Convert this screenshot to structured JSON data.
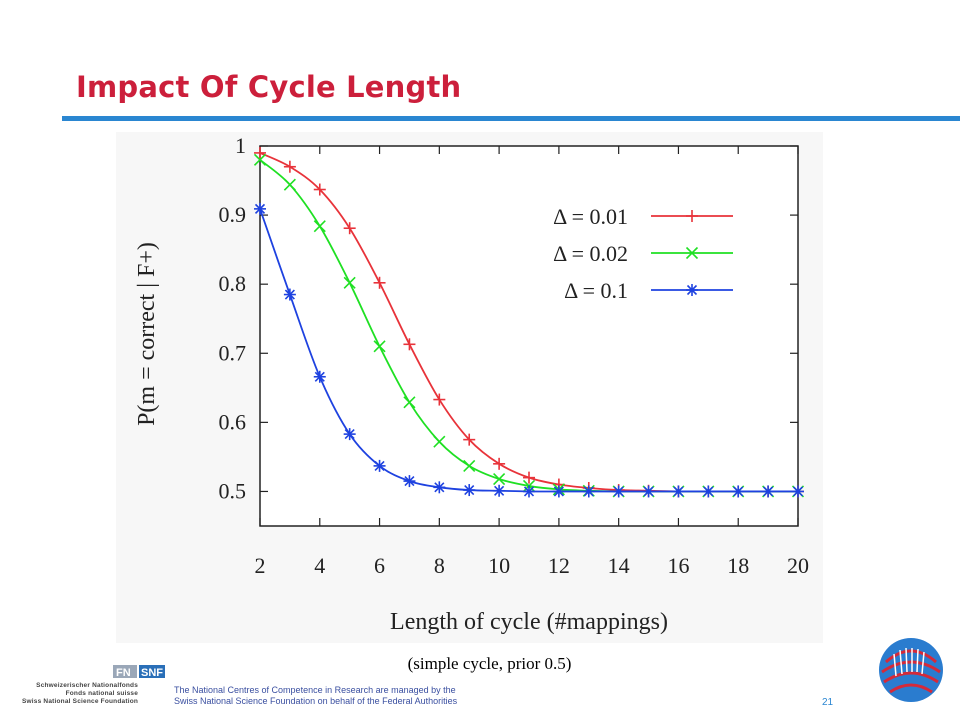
{
  "slide": {
    "title": "Impact Of Cycle Length",
    "caption": "(simple cycle, prior 0.5)",
    "page_number": "21",
    "footer_line1": "The National Centres of Competence in Research are managed by the",
    "footer_line2": "Swiss National Science Foundation on behalf of the Federal Authorities",
    "snf_line1": "Schweizerischer Nationalfonds",
    "snf_line2": "Fonds national suisse",
    "snf_line3": "Swiss National Science Foundation",
    "fn_logo_text": "FN",
    "snf_logo_text": "SNF"
  },
  "chart_data": {
    "type": "line",
    "xlabel": "Length of cycle (#mappings)",
    "ylabel": "P(m = correct | F+)",
    "xlim": [
      2,
      20
    ],
    "ylim": [
      0.45,
      1.0
    ],
    "xticks": [
      2,
      4,
      6,
      8,
      10,
      12,
      14,
      16,
      18,
      20
    ],
    "yticks": [
      0.5,
      0.6,
      0.7,
      0.8,
      0.9,
      1
    ],
    "ytick_labels": [
      "0.5",
      "0.6",
      "0.7",
      "0.8",
      "0.9",
      "1"
    ],
    "grid": false,
    "legend_position": "top-right",
    "x": [
      2,
      3,
      4,
      5,
      6,
      7,
      8,
      9,
      10,
      11,
      12,
      13,
      14,
      15,
      16,
      17,
      18,
      19,
      20
    ],
    "series": [
      {
        "name": "Δ = 0.01",
        "color": "#e8333a",
        "marker": "plus",
        "values": [
          0.99,
          0.97,
          0.937,
          0.881,
          0.802,
          0.713,
          0.633,
          0.575,
          0.54,
          0.52,
          0.51,
          0.505,
          0.502,
          0.501,
          0.5,
          0.5,
          0.5,
          0.5,
          0.5
        ]
      },
      {
        "name": "Δ = 0.02",
        "color": "#1fe023",
        "marker": "cross",
        "values": [
          0.98,
          0.944,
          0.884,
          0.802,
          0.71,
          0.629,
          0.572,
          0.537,
          0.518,
          0.508,
          0.503,
          0.501,
          0.5,
          0.5,
          0.5,
          0.5,
          0.5,
          0.5,
          0.5
        ]
      },
      {
        "name": "Δ = 0.1",
        "color": "#1e42e0",
        "marker": "star",
        "values": [
          0.909,
          0.785,
          0.666,
          0.583,
          0.537,
          0.515,
          0.506,
          0.502,
          0.501,
          0.5,
          0.5,
          0.5,
          0.5,
          0.5,
          0.5,
          0.5,
          0.5,
          0.5,
          0.5
        ]
      }
    ]
  }
}
